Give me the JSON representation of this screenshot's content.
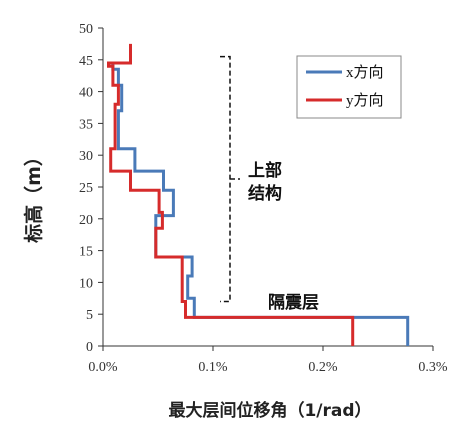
{
  "chart_data": {
    "type": "line",
    "xlabel": "最大层间位移角（1/rad）",
    "ylabel": "标高（m）",
    "xlim": [
      0,
      0.003
    ],
    "ylim": [
      0,
      50
    ],
    "x_ticks": [
      "0.0%",
      "0.1%",
      "0.2%",
      "0.3%"
    ],
    "x_tick_values": [
      0,
      0.001,
      0.002,
      0.003
    ],
    "y_ticks": [
      "0",
      "5",
      "10",
      "15",
      "20",
      "25",
      "30",
      "35",
      "40",
      "45",
      "50"
    ],
    "y_tick_values": [
      0,
      5,
      10,
      15,
      20,
      25,
      30,
      35,
      40,
      45,
      50
    ],
    "grid": false,
    "legend_position": "top-right",
    "series": [
      {
        "name": "x方向",
        "color": "#4a7ab8",
        "x": [
          0.00277,
          0.00277,
          0.00083,
          0.00083,
          0.00077,
          0.00077,
          0.00081,
          0.00081,
          0.00048,
          0.00048,
          0.00064,
          0.00064,
          0.00055,
          0.00055,
          0.00029,
          0.00029,
          0.00014,
          0.00014,
          0.00017,
          0.00017,
          0.00014,
          0.00014,
          9e-05,
          9e-05,
          0.00024
        ],
        "y": [
          0,
          4.5,
          4.5,
          7.5,
          7.5,
          11,
          11,
          14,
          14,
          20.5,
          20.5,
          24.5,
          24.5,
          27.5,
          27.5,
          31,
          31,
          37,
          37,
          41,
          41,
          43.5,
          43.5,
          44.5,
          44.5
        ]
      },
      {
        "name": "y方向",
        "color": "#d62b2b",
        "x": [
          0.00227,
          0.00227,
          0.00075,
          0.00075,
          0.00072,
          0.00072,
          0.00048,
          0.00048,
          0.00054,
          0.00054,
          0.00051,
          0.00051,
          0.00025,
          0.00025,
          7e-05,
          7e-05,
          0.00011,
          0.00011,
          0.00014,
          0.00014,
          9e-05,
          9e-05,
          5e-05,
          5e-05,
          0.00025,
          0.00025
        ],
        "y": [
          0,
          4.5,
          4.5,
          7,
          7,
          14,
          14,
          18.5,
          18.5,
          21,
          21,
          24.5,
          24.5,
          27.5,
          27.5,
          31,
          31,
          38,
          38,
          41,
          41,
          44,
          44,
          44.5,
          44.5,
          47.5
        ]
      }
    ],
    "annotations": [
      {
        "text": "上部",
        "ref": "upper"
      },
      {
        "text": "结构",
        "ref": "upper"
      },
      {
        "text": "隔震层",
        "ref": "isolation"
      }
    ],
    "bracket_y_range": [
      7,
      45.5
    ]
  }
}
